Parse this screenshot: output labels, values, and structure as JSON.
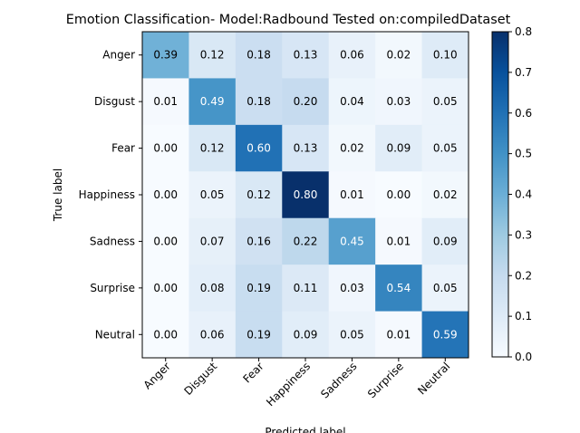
{
  "chart_data": {
    "type": "heatmap",
    "title": "Emotion Classification- Model:Radbound Tested on:compiledDataset",
    "xlabel": "Predicted label",
    "ylabel": "True label",
    "x_categories": [
      "Anger",
      "Disgust",
      "Fear",
      "Happiness",
      "Sadness",
      "Surprise",
      "Neutral"
    ],
    "y_categories": [
      "Anger",
      "Disgust",
      "Fear",
      "Happiness",
      "Sadness",
      "Surprise",
      "Neutral"
    ],
    "values": [
      [
        0.39,
        0.12,
        0.18,
        0.13,
        0.06,
        0.02,
        0.1
      ],
      [
        0.01,
        0.49,
        0.18,
        0.2,
        0.04,
        0.03,
        0.05
      ],
      [
        0.0,
        0.12,
        0.6,
        0.13,
        0.02,
        0.09,
        0.05
      ],
      [
        0.0,
        0.05,
        0.12,
        0.8,
        0.01,
        0.0,
        0.02
      ],
      [
        0.0,
        0.07,
        0.16,
        0.22,
        0.45,
        0.01,
        0.09
      ],
      [
        0.0,
        0.08,
        0.19,
        0.11,
        0.03,
        0.54,
        0.05
      ],
      [
        0.0,
        0.06,
        0.19,
        0.09,
        0.05,
        0.01,
        0.59
      ]
    ],
    "colorbar": {
      "range": [
        0.0,
        0.8
      ],
      "ticks": [
        "0.0",
        "0.1",
        "0.2",
        "0.3",
        "0.4",
        "0.5",
        "0.6",
        "0.7",
        "0.8"
      ]
    },
    "colormap": "Blues",
    "colors": {
      "text_dark": "#000000",
      "text_light": "#ffffff"
    }
  }
}
